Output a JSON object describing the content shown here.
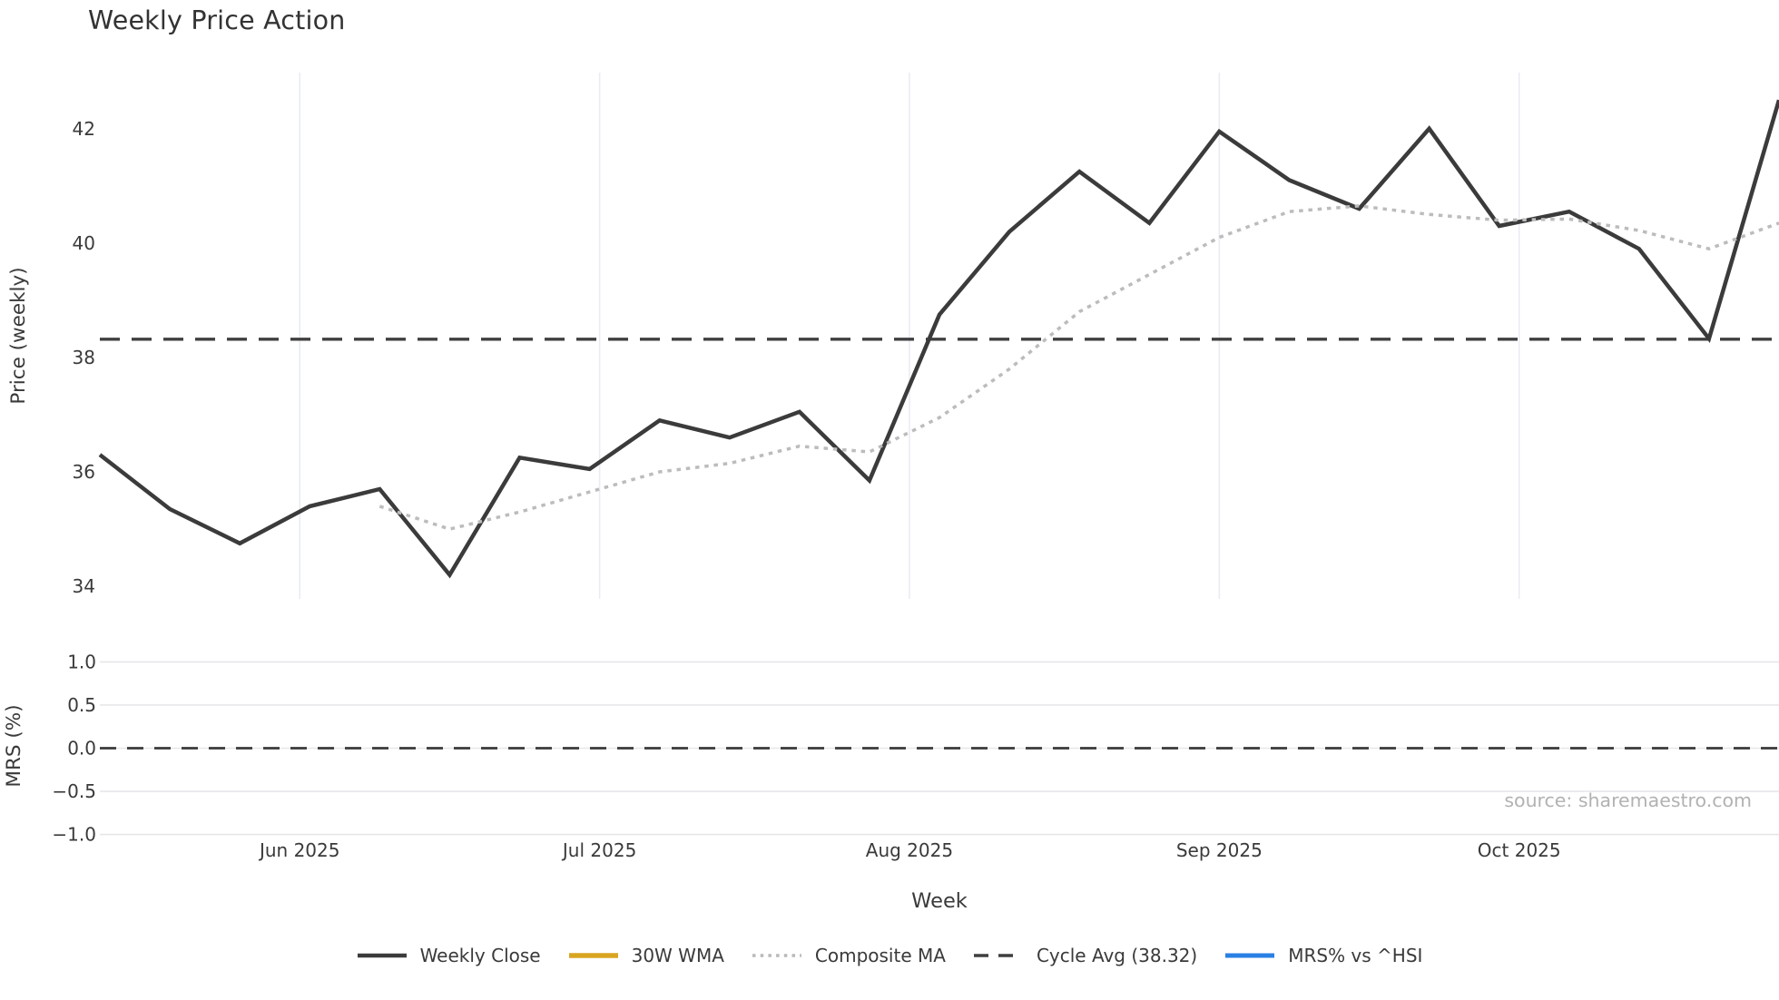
{
  "chart_data": {
    "type": "line",
    "title": "Weekly Price Action",
    "xlabel": "Week",
    "source": "source: sharemaestro.com",
    "x_axis": {
      "unit": "weeks",
      "weeks_total": 24,
      "month_ticks": [
        {
          "label": "Jun 2025",
          "week": 2.857
        },
        {
          "label": "Jul 2025",
          "week": 7.143
        },
        {
          "label": "Aug 2025",
          "week": 11.571
        },
        {
          "label": "Sep 2025",
          "week": 16.0
        },
        {
          "label": "Oct 2025",
          "week": 20.286
        }
      ]
    },
    "price_panel": {
      "ylabel": "Price (weekly)",
      "ytick_labels": [
        "42",
        "40",
        "38",
        "36",
        "34"
      ],
      "ytick_values": [
        42,
        40,
        38,
        36,
        34
      ],
      "ylim": [
        33.78,
        42.98
      ],
      "grid": "vertical-months-only",
      "series": [
        {
          "name": "Weekly Close",
          "color": "#3b3b3b",
          "style": "solid",
          "start_week": 0,
          "values": [
            36.3,
            35.35,
            34.75,
            35.4,
            35.7,
            34.2,
            36.25,
            36.05,
            36.9,
            36.6,
            37.05,
            35.85,
            38.75,
            40.2,
            41.25,
            40.35,
            41.95,
            41.1,
            40.6,
            42.0,
            40.3,
            40.55,
            39.9,
            38.33,
            42.5
          ]
        },
        {
          "name": "Composite MA",
          "color": "#bcbcbc",
          "style": "dotted",
          "start_week": 4,
          "values": [
            35.4,
            35.0,
            35.3,
            35.65,
            36.0,
            36.15,
            36.45,
            36.35,
            36.95,
            37.8,
            38.8,
            39.45,
            40.1,
            40.55,
            40.65,
            40.5,
            40.4,
            40.42,
            40.22,
            39.9,
            40.35
          ]
        }
      ],
      "reference_line": {
        "name": "Cycle Avg",
        "value": 38.32,
        "color": "#3f3f3f",
        "style": "dashed"
      }
    },
    "mrs_panel": {
      "ylabel": "MRS (%)",
      "ytick_labels": [
        "1.0",
        "0.5",
        "0.0",
        "−0.5",
        "−1.0"
      ],
      "ytick_values": [
        1.0,
        0.5,
        0.0,
        -0.5,
        -1.0
      ],
      "ylim": [
        -1.12,
        1.12
      ],
      "grid": "horizontal-only",
      "reference_line": {
        "value": 0.0,
        "color": "#3a3a3a",
        "style": "dashed"
      }
    },
    "legend": {
      "items": [
        {
          "label": "Weekly Close",
          "swatch": "solid",
          "color": "#3b3b3b",
          "weight": 4.5
        },
        {
          "label": "30W WMA",
          "swatch": "solid",
          "color": "#d9a521",
          "weight": 5.5
        },
        {
          "label": "Composite MA",
          "swatch": "dotted",
          "color": "#b9b9b9",
          "weight": 3.5
        },
        {
          "label": "Cycle Avg (38.32)",
          "swatch": "dashed",
          "color": "#3f3f3f",
          "weight": 3.5
        },
        {
          "label": "MRS% vs ^HSI",
          "swatch": "solid",
          "color": "#2980e4",
          "weight": 5
        }
      ]
    },
    "grid_colors": {
      "vertical": "#eaecf2",
      "horizontal": "#e7e7eb"
    }
  }
}
